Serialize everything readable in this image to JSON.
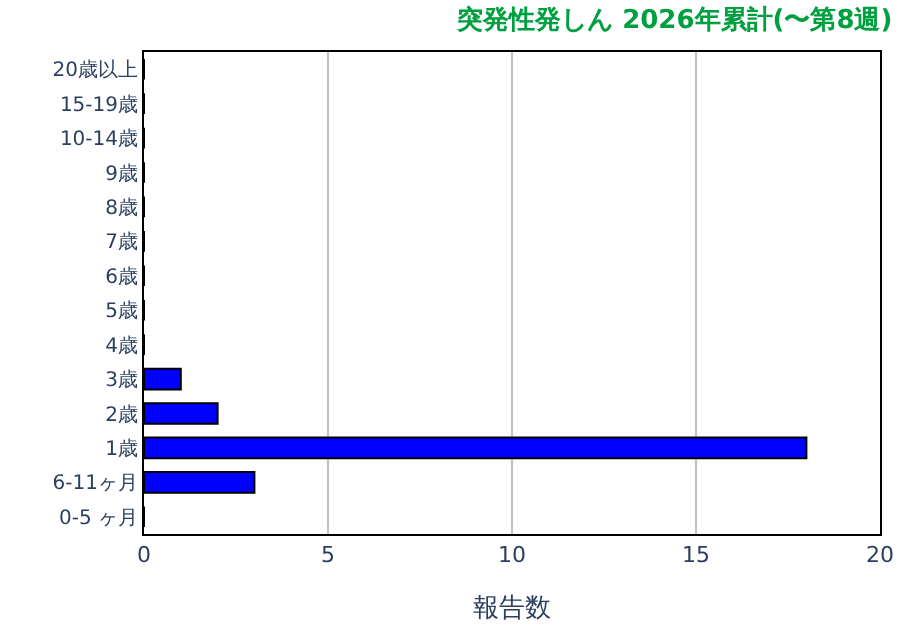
{
  "chart_data": {
    "type": "bar",
    "orientation": "horizontal",
    "title": "突発性発しん 2026年累計(〜第8週)",
    "xlabel": "報告数",
    "categories": [
      "20歳以上",
      "15-19歳",
      "10-14歳",
      "9歳",
      "8歳",
      "7歳",
      "6歳",
      "5歳",
      "4歳",
      "3歳",
      "2歳",
      "1歳",
      "6-11ヶ月",
      "0-5 ヶ月"
    ],
    "values": [
      0,
      0,
      0,
      0,
      0,
      0,
      0,
      0,
      0,
      1,
      2,
      18,
      3,
      0
    ],
    "color": "#0000ff",
    "xlim": [
      0,
      20
    ],
    "xticks": [
      0,
      5,
      10,
      15,
      20
    ],
    "grid": "x",
    "legend": false
  }
}
